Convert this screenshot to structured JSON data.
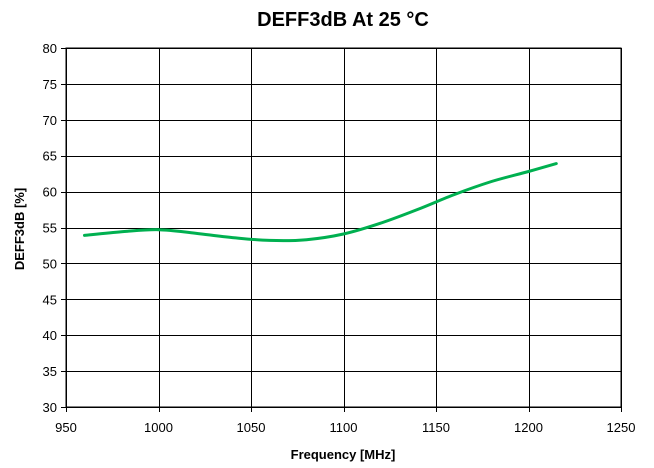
{
  "chart_data": {
    "type": "line",
    "title": "DEFF3dB At 25 °C",
    "xlabel": "Frequency [MHz]",
    "ylabel": "DEFF3dB [%]",
    "xlim": [
      950,
      1250
    ],
    "ylim": [
      30,
      80
    ],
    "xticks": [
      950,
      1000,
      1050,
      1100,
      1150,
      1200,
      1250
    ],
    "yticks": [
      30,
      35,
      40,
      45,
      50,
      55,
      60,
      65,
      70,
      75,
      80
    ],
    "grid": true,
    "legend": "none",
    "series": [
      {
        "color": "#00b050",
        "x": [
          960,
          980,
          1000,
          1020,
          1040,
          1060,
          1080,
          1100,
          1120,
          1140,
          1160,
          1180,
          1200,
          1215
        ],
        "y": [
          53.9,
          54.4,
          54.7,
          54.2,
          53.6,
          53.2,
          53.3,
          54.1,
          55.6,
          57.5,
          59.6,
          61.4,
          62.8,
          63.9
        ]
      }
    ]
  }
}
